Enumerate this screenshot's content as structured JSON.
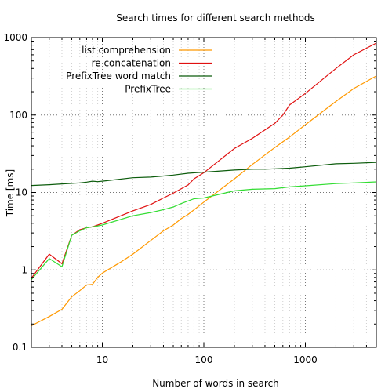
{
  "chart_data": {
    "type": "line",
    "title": "Search times for different search methods",
    "xlabel": "Number of words in search",
    "ylabel": "Time [ms]",
    "xscale": "log",
    "yscale": "log",
    "xlim": [
      2,
      5000
    ],
    "ylim": [
      0.1,
      1000
    ],
    "grid": "dotted at major ticks and minor x ticks",
    "legend_position": "top-left",
    "x_tick_labels": [
      {
        "value": 10,
        "label": "10"
      },
      {
        "value": 100,
        "label": "100"
      },
      {
        "value": 1000,
        "label": "1000"
      }
    ],
    "y_tick_labels": [
      {
        "value": 0.1,
        "label": "0.1"
      },
      {
        "value": 1,
        "label": "1"
      },
      {
        "value": 10,
        "label": "10"
      },
      {
        "value": 100,
        "label": "100"
      },
      {
        "value": 1000,
        "label": "1000"
      }
    ],
    "series": [
      {
        "name": "list comprehension",
        "color": "#ff9900",
        "points": [
          [
            2,
            0.19
          ],
          [
            3,
            0.25
          ],
          [
            4,
            0.31
          ],
          [
            5,
            0.45
          ],
          [
            6,
            0.54
          ],
          [
            7,
            0.64
          ],
          [
            8,
            0.65
          ],
          [
            9,
            0.8
          ],
          [
            10,
            0.91
          ],
          [
            15,
            1.25
          ],
          [
            20,
            1.6
          ],
          [
            30,
            2.4
          ],
          [
            40,
            3.2
          ],
          [
            50,
            3.8
          ],
          [
            60,
            4.6
          ],
          [
            70,
            5.2
          ],
          [
            100,
            7.5
          ],
          [
            200,
            15
          ],
          [
            300,
            23
          ],
          [
            500,
            38
          ],
          [
            700,
            52
          ],
          [
            1000,
            75
          ],
          [
            2000,
            150
          ],
          [
            3000,
            220
          ],
          [
            5000,
            320
          ]
        ]
      },
      {
        "name": "re concatenation",
        "color": "#e01010",
        "points": [
          [
            2,
            0.78
          ],
          [
            3,
            1.6
          ],
          [
            4,
            1.2
          ],
          [
            5,
            2.8
          ],
          [
            6,
            3.3
          ],
          [
            7,
            3.5
          ],
          [
            8,
            3.6
          ],
          [
            9,
            3.8
          ],
          [
            10,
            4.0
          ],
          [
            20,
            5.8
          ],
          [
            30,
            7.0
          ],
          [
            40,
            8.5
          ],
          [
            50,
            9.8
          ],
          [
            70,
            12.5
          ],
          [
            80,
            15
          ],
          [
            100,
            18
          ],
          [
            200,
            37
          ],
          [
            300,
            50
          ],
          [
            500,
            78
          ],
          [
            600,
            100
          ],
          [
            700,
            135
          ],
          [
            1000,
            190
          ],
          [
            2000,
            400
          ],
          [
            3000,
            600
          ],
          [
            5000,
            850
          ]
        ]
      },
      {
        "name": "PrefixTree word match",
        "color": "#0c5c0c",
        "points": [
          [
            2,
            12.3
          ],
          [
            3,
            12.6
          ],
          [
            4,
            12.9
          ],
          [
            5,
            13.1
          ],
          [
            6,
            13.3
          ],
          [
            7,
            13.6
          ],
          [
            8,
            14.0
          ],
          [
            9,
            13.8
          ],
          [
            10,
            14.0
          ],
          [
            20,
            15.5
          ],
          [
            30,
            15.8
          ],
          [
            40,
            16.3
          ],
          [
            50,
            16.8
          ],
          [
            70,
            17.7
          ],
          [
            100,
            18.3
          ],
          [
            200,
            19.5
          ],
          [
            300,
            20.0
          ],
          [
            400,
            20.0
          ],
          [
            500,
            20.2
          ],
          [
            700,
            20.6
          ],
          [
            1000,
            21.5
          ],
          [
            2000,
            23.5
          ],
          [
            3000,
            23.8
          ],
          [
            5000,
            24.5
          ]
        ]
      },
      {
        "name": "PrefixTree",
        "color": "#33dd33",
        "points": [
          [
            2,
            0.75
          ],
          [
            3,
            1.4
          ],
          [
            4,
            1.1
          ],
          [
            5,
            2.8
          ],
          [
            6,
            3.2
          ],
          [
            7,
            3.5
          ],
          [
            8,
            3.6
          ],
          [
            9,
            3.7
          ],
          [
            10,
            3.8
          ],
          [
            20,
            5.0
          ],
          [
            30,
            5.5
          ],
          [
            40,
            6.0
          ],
          [
            50,
            6.5
          ],
          [
            60,
            7.2
          ],
          [
            80,
            8.3
          ],
          [
            100,
            8.5
          ],
          [
            200,
            10.5
          ],
          [
            300,
            11.0
          ],
          [
            500,
            11.2
          ],
          [
            700,
            11.8
          ],
          [
            1000,
            12.2
          ],
          [
            2000,
            13.0
          ],
          [
            3000,
            13.3
          ],
          [
            5000,
            13.7
          ]
        ]
      }
    ]
  }
}
